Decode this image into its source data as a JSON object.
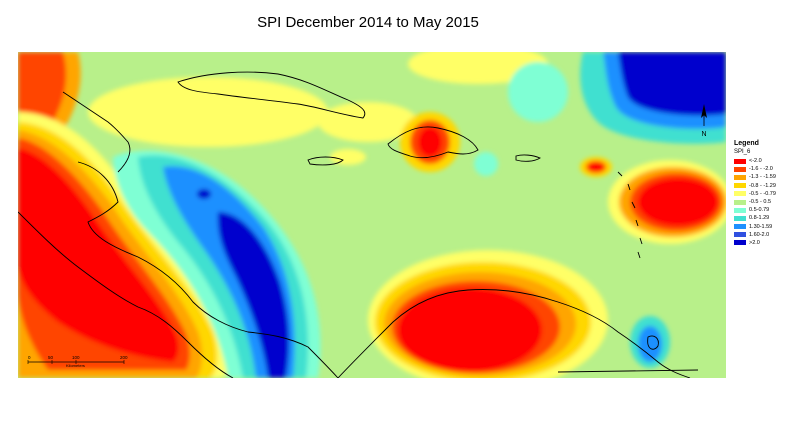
{
  "title": "SPI December 2014  to May 2015",
  "legend": {
    "title": "Legend",
    "field": "SPI_6",
    "items": [
      {
        "label": "<-2.0",
        "color": "#ff0000"
      },
      {
        "label": "-1.6 - -2.0",
        "color": "#ff4500"
      },
      {
        "label": "-1.3 - -1.59",
        "color": "#ffa500"
      },
      {
        "label": "-0.8 - -1.29",
        "color": "#ffd700"
      },
      {
        "label": "-0.5 - -0.79",
        "color": "#ffff66"
      },
      {
        "label": "-0.5 - 0.5",
        "color": "#b8f08a"
      },
      {
        "label": "0.5-0.79",
        "color": "#7fffd4"
      },
      {
        "label": "0.8-1.29",
        "color": "#40e0d0"
      },
      {
        "label": "1.30-1.59",
        "color": "#1e90ff"
      },
      {
        "label": "1.60-2.0",
        "color": "#3050e0"
      },
      {
        "label": ">2.0",
        "color": "#0000cd"
      }
    ]
  },
  "scale": {
    "ticks": [
      "0",
      "50",
      "100",
      "200"
    ],
    "unit": "Kilometers"
  },
  "north_label": "N"
}
